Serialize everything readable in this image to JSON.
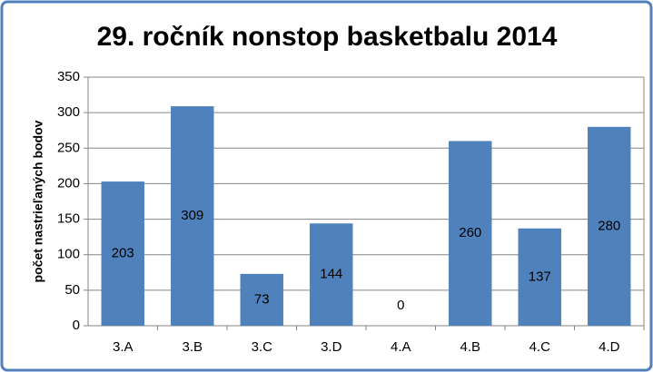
{
  "chart_data": {
    "type": "bar",
    "title": "29. ročník nonstop basketbalu 2014",
    "y_label": "počet nastrieľaných bodov",
    "categories": [
      "3.A",
      "3.B",
      "3.C",
      "3.D",
      "4.A",
      "4.B",
      "4.C",
      "4.D"
    ],
    "values": [
      203,
      309,
      73,
      144,
      0,
      260,
      137,
      280
    ],
    "color": "#4f81bd",
    "ylim": [
      0,
      350
    ],
    "yticks": [
      0,
      50,
      100,
      150,
      200,
      250,
      300,
      350
    ],
    "grid": true
  }
}
